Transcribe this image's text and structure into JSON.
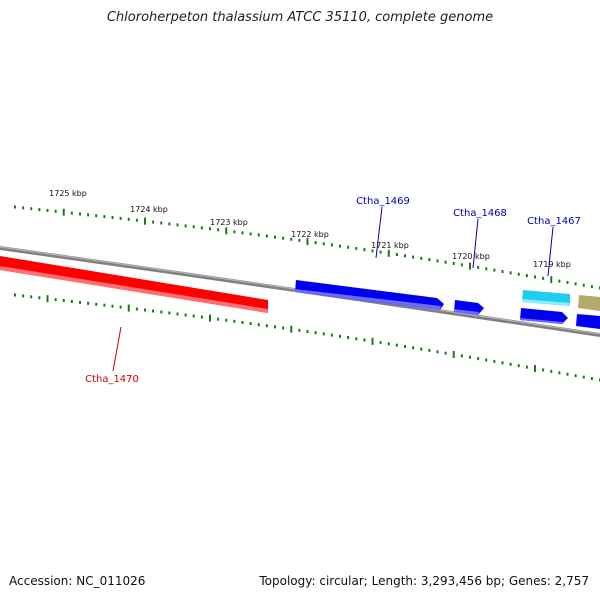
{
  "title": "Chloroherpeton thalassium ATCC 35110, complete genome",
  "footer": {
    "accession": "Accession: NC_011026",
    "summary": "Topology: circular; Length: 3,293,456 bp; Genes: 2,757"
  },
  "colors": {
    "backbone": "#808080",
    "minor_tick": "#1a7a1a",
    "reverse_gene": "#ff0000",
    "forward_gene": "#0000ee",
    "rna_gene": "#22ccee",
    "other_feature": "#b5a96a",
    "forward_label": "#0000aa",
    "reverse_label": "#cc0000"
  },
  "kbp_ticks": [
    {
      "label": "1725 kbp"
    },
    {
      "label": "1724 kbp"
    },
    {
      "label": "1723 kbp"
    },
    {
      "label": "1722 kbp"
    },
    {
      "label": "1721 kbp"
    },
    {
      "label": "1720 kbp"
    },
    {
      "label": "1719 kbp"
    }
  ],
  "gene_labels": [
    {
      "name": "Ctha_1469",
      "strand": "forward"
    },
    {
      "name": "Ctha_1468",
      "strand": "forward"
    },
    {
      "name": "Ctha_1467",
      "strand": "forward"
    },
    {
      "name": "Ctha_1470",
      "strand": "reverse"
    }
  ]
}
